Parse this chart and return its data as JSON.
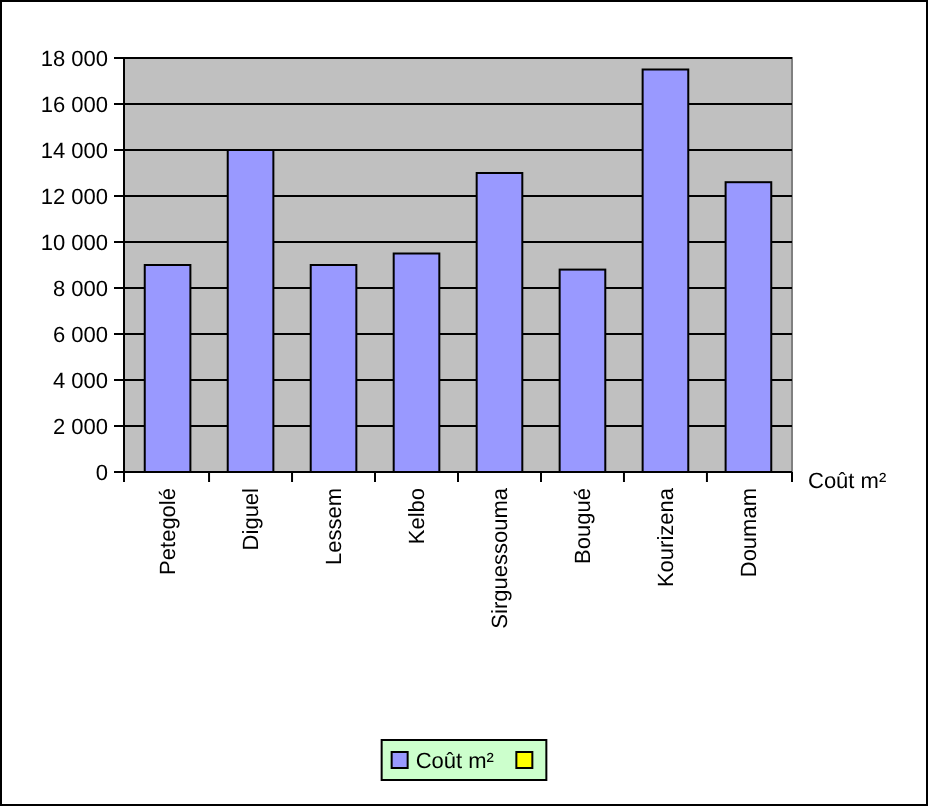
{
  "chart_data": {
    "type": "bar",
    "categories": [
      "Petegolé",
      "Diguel",
      "Lessem",
      "Kelbo",
      "Sirguessouma",
      "Bougué",
      "Kourizena",
      "Doumam"
    ],
    "series": [
      {
        "name": "Coût m²",
        "color": "#9999ff",
        "values": [
          9000,
          14000,
          9000,
          9500,
          13000,
          8800,
          17500,
          12600
        ]
      },
      {
        "color": "#ffff00",
        "values": [
          null,
          null,
          null,
          null,
          null,
          null,
          null,
          null
        ]
      }
    ],
    "ylim": [
      0,
      18000
    ],
    "yticks": [
      0,
      {
        "value": 2000,
        "label": "2 000"
      },
      {
        "value": 4000,
        "label": "4 000"
      },
      {
        "value": 6000,
        "label": "6 000"
      },
      {
        "value": 8000,
        "label": "8 000"
      },
      {
        "value": 10000,
        "label": "10 000"
      },
      {
        "value": 12000,
        "label": "12 000"
      },
      {
        "value": 14000,
        "label": "14 000"
      },
      {
        "value": 16000,
        "label": "16 000"
      },
      {
        "value": 18000,
        "label": "18 000"
      }
    ],
    "grid": "y",
    "legend": "bottom"
  }
}
